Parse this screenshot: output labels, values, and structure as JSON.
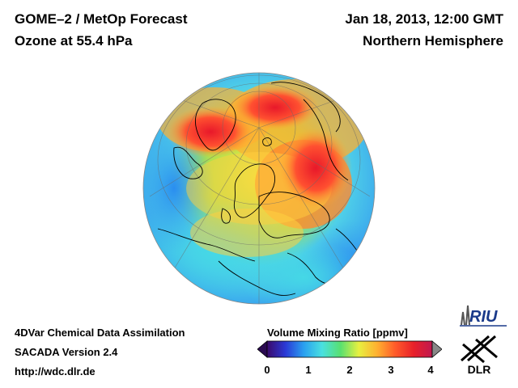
{
  "header": {
    "title_line1": "GOME–2 / MetOp Forecast",
    "title_line2": "Ozone at 55.4 hPa",
    "date": "Jan 18, 2013, 12:00 GMT",
    "hemisphere": "Northern Hemisphere"
  },
  "footer": {
    "line1": "4DVar Chemical Data Assimilation",
    "line2": "SACADA Version 2.4",
    "line3": "http://wdc.dlr.de"
  },
  "colorbar": {
    "title": "Volume Mixing Ratio [ppmv]",
    "ticks": [
      "0",
      "1",
      "2",
      "3",
      "4"
    ],
    "min": 0,
    "max": 4,
    "colors": [
      "#3b0a6b",
      "#2a39d6",
      "#2aa0f0",
      "#49e0e0",
      "#58e070",
      "#e8f040",
      "#ffb030",
      "#ff5a2a",
      "#e8202a",
      "#c01850"
    ]
  },
  "logos": {
    "riu": "RIU",
    "dlr": "DLR"
  }
}
